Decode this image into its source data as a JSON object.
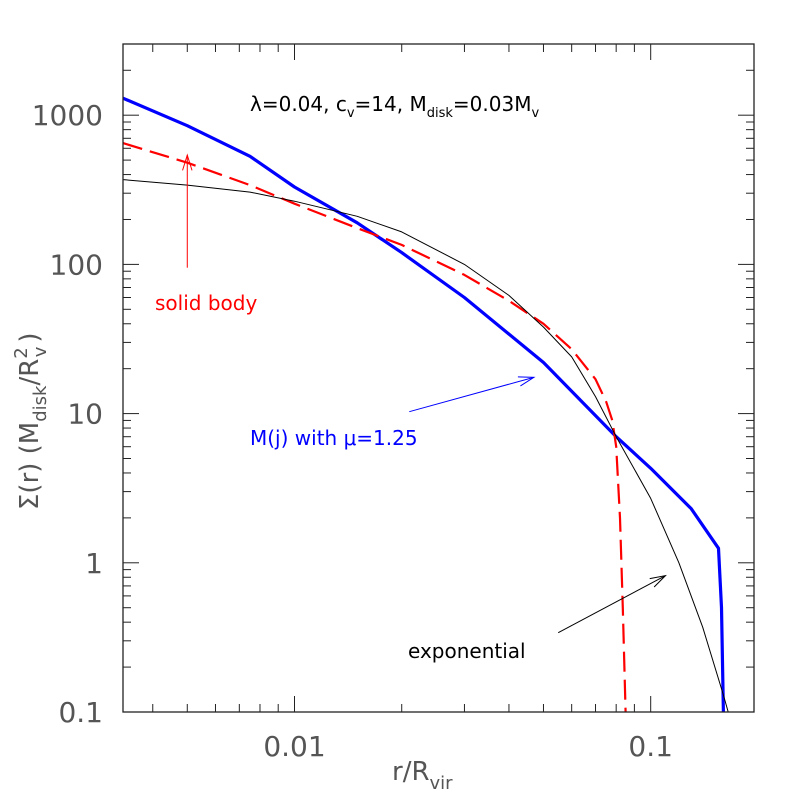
{
  "chart_data": {
    "type": "line",
    "xscale": "log",
    "yscale": "log",
    "xlim": [
      0.0033,
      0.195
    ],
    "ylim": [
      0.1,
      3000
    ],
    "grid": false,
    "xticks": [
      {
        "value": 0.01,
        "label": "0.01"
      },
      {
        "value": 0.1,
        "label": "0.1"
      }
    ],
    "yticks": [
      {
        "value": 0.1,
        "label": "0.1"
      },
      {
        "value": 1,
        "label": "1"
      },
      {
        "value": 10,
        "label": "10"
      },
      {
        "value": 100,
        "label": "100"
      },
      {
        "value": 1000,
        "label": "1000"
      }
    ],
    "xlabel": {
      "text": "r/R",
      "sub": "vir"
    },
    "ylabel": {
      "text": "Σ(r) (M",
      "sub1": "disk",
      "mid": "/R",
      "sup": "2",
      "sub2": "v",
      "end": ")"
    },
    "title": {
      "lam": "λ=0.04, c",
      "sub1": "v",
      "mid": "=14, M",
      "sub2": "disk",
      "mid2": "=0.03M",
      "sub3": "v"
    },
    "series": [
      {
        "label": "M(j)",
        "color": "#0000ff",
        "style": "solid-thick",
        "points": [
          [
            0.0033,
            1300
          ],
          [
            0.005,
            850
          ],
          [
            0.0075,
            530
          ],
          [
            0.01,
            330
          ],
          [
            0.015,
            190
          ],
          [
            0.02,
            120
          ],
          [
            0.03,
            60
          ],
          [
            0.05,
            22
          ],
          [
            0.08,
            7
          ],
          [
            0.1,
            4.3
          ],
          [
            0.13,
            2.3
          ],
          [
            0.155,
            1.25
          ],
          [
            0.158,
            0.5
          ],
          [
            0.16,
            0.1
          ]
        ]
      },
      {
        "label": "solid body",
        "color": "#ff0000",
        "style": "dashed",
        "points": [
          [
            0.0033,
            650
          ],
          [
            0.005,
            480
          ],
          [
            0.0075,
            340
          ],
          [
            0.01,
            255
          ],
          [
            0.015,
            175
          ],
          [
            0.02,
            135
          ],
          [
            0.03,
            85
          ],
          [
            0.04,
            57
          ],
          [
            0.05,
            40
          ],
          [
            0.06,
            27
          ],
          [
            0.07,
            17
          ],
          [
            0.075,
            12
          ],
          [
            0.078,
            9
          ],
          [
            0.08,
            6
          ],
          [
            0.082,
            2
          ],
          [
            0.0835,
            0.5
          ],
          [
            0.085,
            0.1
          ]
        ]
      },
      {
        "label": "exponential",
        "color": "#000000",
        "style": "solid-thin",
        "points": [
          [
            0.0033,
            370
          ],
          [
            0.005,
            340
          ],
          [
            0.0075,
            305
          ],
          [
            0.01,
            265
          ],
          [
            0.015,
            210
          ],
          [
            0.02,
            165
          ],
          [
            0.03,
            100
          ],
          [
            0.04,
            62
          ],
          [
            0.05,
            38
          ],
          [
            0.06,
            24
          ],
          [
            0.07,
            13
          ],
          [
            0.08,
            7
          ],
          [
            0.1,
            2.7
          ],
          [
            0.12,
            1.0
          ],
          [
            0.14,
            0.37
          ],
          [
            0.16,
            0.13
          ],
          [
            0.165,
            0.1
          ]
        ]
      }
    ],
    "annotations": [
      {
        "label": "solid body",
        "color": "#ff0000"
      },
      {
        "label": "M(j) with μ=1.25",
        "color": "#0000ff"
      },
      {
        "label": "exponential",
        "color": "#000000"
      }
    ]
  }
}
